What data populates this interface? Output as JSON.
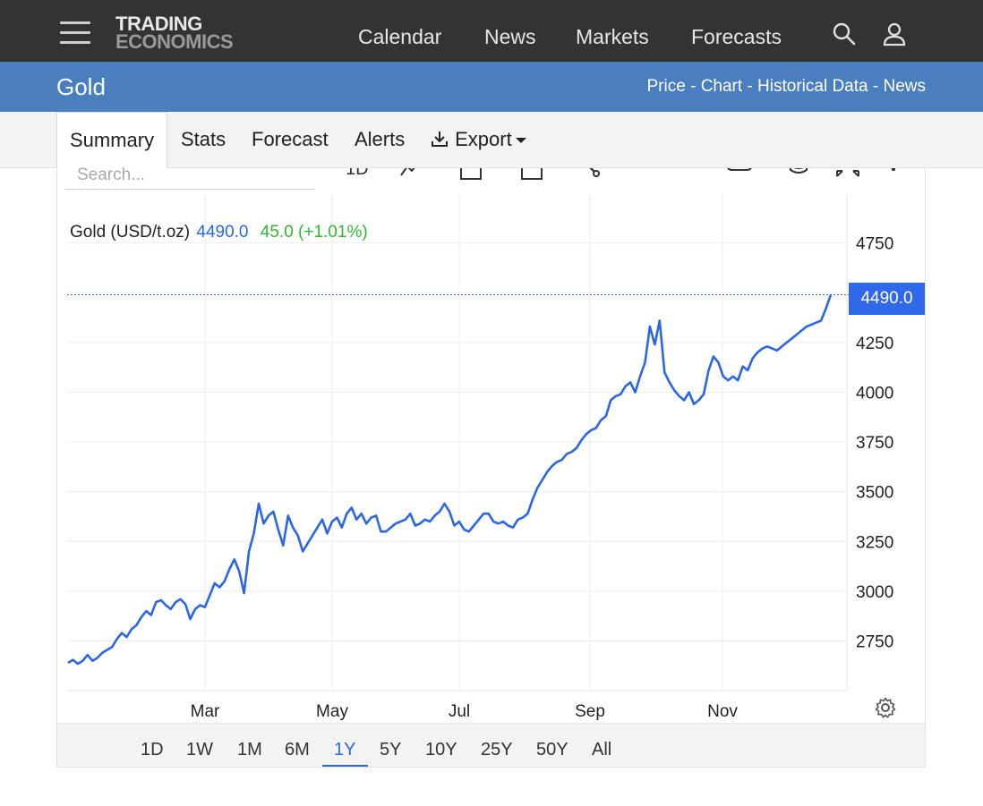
{
  "header": {
    "logo_line1": "TRADING",
    "logo_line2": "ECONOMICS",
    "nav": [
      "Calendar",
      "News",
      "Markets",
      "Forecasts"
    ],
    "icons": [
      "hamburger-menu-icon",
      "search-icon",
      "user-icon"
    ]
  },
  "subheader": {
    "title": "Gold",
    "links": [
      "Price",
      "Chart",
      "Historical Data",
      "News"
    ],
    "separator": " - "
  },
  "tabs": {
    "items": [
      "Summary",
      "Stats",
      "Forecast",
      "Alerts",
      "Export"
    ],
    "active": "Summary"
  },
  "toolbar": {
    "search_placeholder": "Search...",
    "interval_label": "1D",
    "icons": [
      "indicators-icon",
      "calendar-icon",
      "add-compare-icon",
      "draw-tool-icon",
      "download-icon",
      "database-icon",
      "fullscreen-icon",
      "more-icon",
      "settings-gear-icon"
    ]
  },
  "legend": {
    "name": "Gold (USD/t.oz)",
    "price": "4490.0",
    "change": "45.0 (+1.01%)"
  },
  "price_tag": "4490.0",
  "ranges": {
    "items": [
      "1D",
      "1W",
      "1M",
      "6M",
      "1Y",
      "5Y",
      "10Y",
      "25Y",
      "50Y",
      "All"
    ],
    "active": "1Y"
  },
  "colors": {
    "line": "#2b66e8",
    "nav_bg": "#333333",
    "subheader_bg": "#4a7fbf",
    "change_positive": "#2eb82e"
  },
  "chart_data": {
    "type": "line",
    "x_tick_labels": [
      "Mar",
      "May",
      "Jul",
      "Sep",
      "Nov"
    ],
    "y_tick_labels": [
      "2750",
      "3000",
      "3250",
      "3500",
      "3750",
      "4000",
      "4250",
      "4750"
    ],
    "ylim": [
      2500,
      4950
    ],
    "last_value": 4490.0,
    "grid": true,
    "series": [
      {
        "name": "Gold (USD/t.oz)",
        "values": [
          2640,
          2655,
          2635,
          2650,
          2680,
          2650,
          2665,
          2690,
          2705,
          2720,
          2760,
          2790,
          2770,
          2810,
          2830,
          2870,
          2900,
          2880,
          2945,
          2955,
          2930,
          2910,
          2945,
          2960,
          2935,
          2860,
          2910,
          2930,
          2920,
          2980,
          3040,
          3020,
          3050,
          3110,
          3160,
          3100,
          2990,
          3200,
          3290,
          3440,
          3340,
          3380,
          3400,
          3310,
          3230,
          3380,
          3320,
          3280,
          3200,
          3240,
          3280,
          3320,
          3360,
          3290,
          3350,
          3370,
          3320,
          3390,
          3420,
          3360,
          3390,
          3340,
          3370,
          3380,
          3300,
          3300,
          3320,
          3340,
          3350,
          3360,
          3390,
          3330,
          3340,
          3360,
          3350,
          3380,
          3400,
          3440,
          3400,
          3330,
          3350,
          3310,
          3300,
          3330,
          3360,
          3390,
          3390,
          3350,
          3340,
          3350,
          3330,
          3320,
          3360,
          3370,
          3390,
          3460,
          3520,
          3560,
          3600,
          3630,
          3650,
          3660,
          3690,
          3700,
          3720,
          3760,
          3790,
          3810,
          3820,
          3860,
          3880,
          3960,
          3980,
          3990,
          4030,
          4050,
          4000,
          4080,
          4150,
          4330,
          4240,
          4360,
          4100,
          4050,
          4010,
          3980,
          3960,
          4000,
          3940,
          3960,
          3990,
          4110,
          4180,
          4150,
          4080,
          4060,
          4080,
          4060,
          4130,
          4110,
          4170,
          4200,
          4220,
          4230,
          4220,
          4210,
          4230,
          4250,
          4270,
          4290,
          4310,
          4330,
          4340,
          4350,
          4360,
          4420,
          4490
        ]
      }
    ]
  }
}
